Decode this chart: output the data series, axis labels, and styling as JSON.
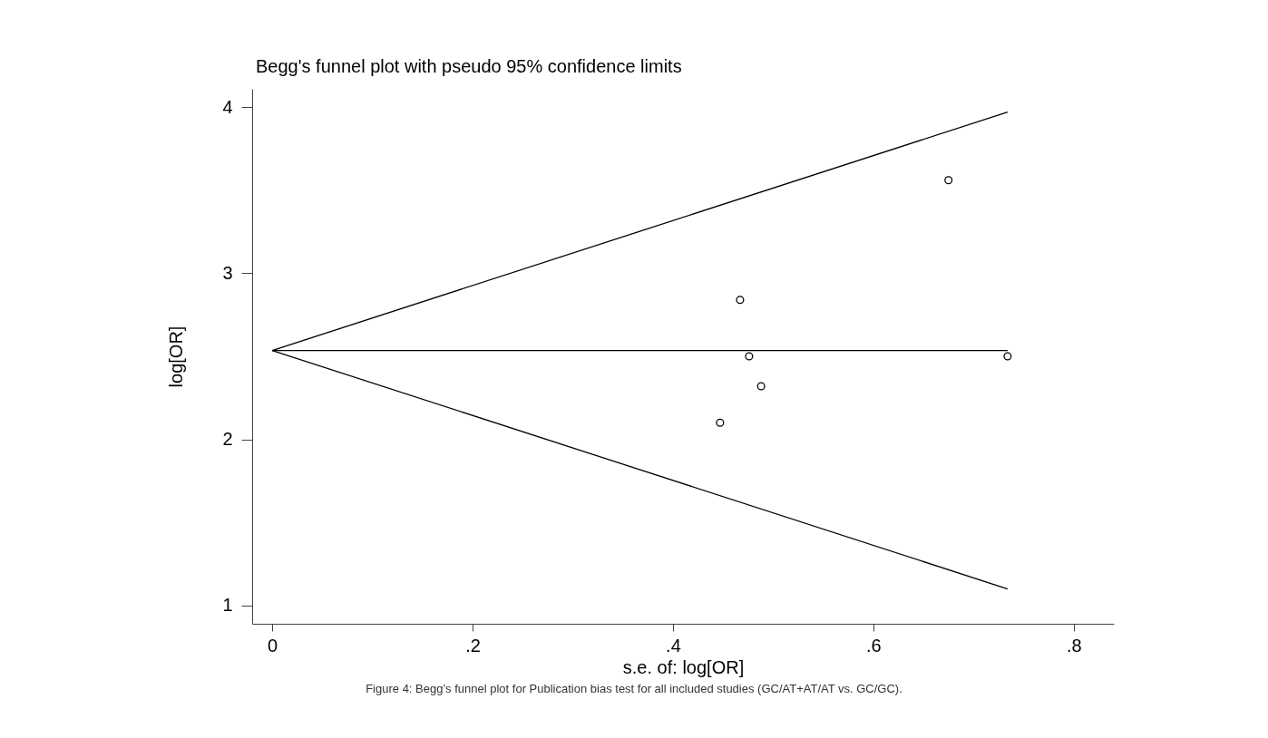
{
  "chart_data": {
    "type": "scatter",
    "title": "Begg's funnel plot with pseudo 95% confidence limits",
    "xlabel": "s.e. of: log[OR]",
    "ylabel": "log[OR]",
    "annotations": [
      "Figure 4: Begg’s funnel plot for Publication bias test for all included studies (GC/AT+AT/AT vs. GC/GC)."
    ],
    "xlim": [
      -0.02,
      0.84
    ],
    "ylim": [
      0.89,
      4.11
    ],
    "xticks": [
      0,
      {
        "value": 0.2,
        "label": ".2"
      },
      {
        "value": 0.4,
        "label": ".4"
      },
      {
        "value": 0.6,
        "label": ".6"
      },
      {
        "value": 0.8,
        "label": ".8"
      }
    ],
    "yticks": [
      1,
      2,
      3,
      4
    ],
    "grid": false,
    "series": [
      {
        "marker": "circle",
        "color": "#000000",
        "x": [
          0.467,
          0.476,
          0.488,
          0.447,
          0.675,
          0.734
        ],
        "values": [
          2.84,
          2.5,
          2.32,
          2.1,
          3.56,
          2.5
        ]
      },
      {
        "type": "line",
        "marker": "none",
        "color": "#000000",
        "x": [
          0,
          0.734
        ],
        "values": [
          2.535,
          3.97
        ]
      },
      {
        "type": "line",
        "marker": "none",
        "color": "#000000",
        "x": [
          0,
          0.734
        ],
        "values": [
          2.535,
          2.535
        ]
      },
      {
        "type": "line",
        "marker": "none",
        "color": "#000000",
        "x": [
          0,
          0.734
        ],
        "values": [
          2.535,
          1.1
        ]
      }
    ]
  }
}
